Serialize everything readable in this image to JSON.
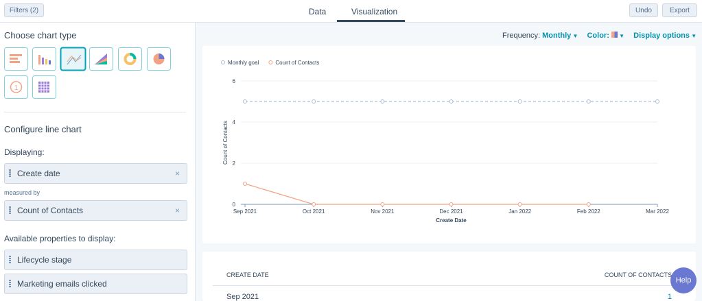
{
  "toolbar": {
    "filters": "Filters (2)",
    "tabs": [
      "Data",
      "Visualization"
    ],
    "undo": "Undo",
    "export": "Export"
  },
  "sidebar": {
    "choose_title": "Choose chart type",
    "kpi_icon": "1",
    "configure_title": "Configure line chart",
    "displaying_label": "Displaying:",
    "displaying": "Create date",
    "measured_by": "measured by",
    "measure": "Count of Contacts",
    "available_label": "Available properties to display:",
    "available": [
      "Lifecycle stage",
      "Marketing emails clicked"
    ]
  },
  "options": {
    "frequency_label": "Frequency:",
    "frequency": "Monthly",
    "color_label": "Color:",
    "display_options": "Display options"
  },
  "chart": {
    "type": "line",
    "categories": [
      "Sep 2021",
      "Oct 2021",
      "Nov 2021",
      "Dec 2021",
      "Jan 2022",
      "Feb 2022",
      "Mar 2022"
    ],
    "series": [
      {
        "name": "Monthly goal",
        "color": "#a9bfdb",
        "dashed": true,
        "values": [
          5,
          5,
          5,
          5,
          5,
          5,
          5
        ]
      },
      {
        "name": "Count of Contacts",
        "color": "#f2a383",
        "dashed": false,
        "values": [
          1,
          0,
          0,
          0,
          0,
          0,
          null
        ]
      }
    ],
    "ylim": [
      0,
      6
    ],
    "yticks": [
      0,
      2,
      4,
      6
    ],
    "x_label": "Create Date",
    "y_label": "Count of Contacts",
    "grid": true
  },
  "table": {
    "headers": [
      "CREATE DATE",
      "COUNT OF CONTACTS"
    ],
    "rows": [
      [
        "Sep 2021",
        1
      ]
    ]
  },
  "help": "Help"
}
